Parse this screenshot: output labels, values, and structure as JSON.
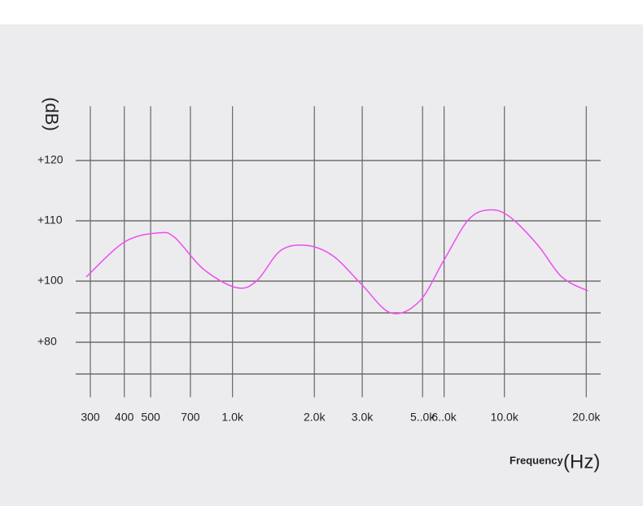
{
  "chart_data": {
    "type": "line",
    "y_label": "(dB)",
    "x_label": "Frequency",
    "x_unit": "(Hz)",
    "log_x": true,
    "grid": true,
    "xlim": [
      265,
      22600
    ],
    "ylim": [
      62,
      129
    ],
    "xticks": [
      {
        "value": 300,
        "label": "300"
      },
      {
        "value": 400,
        "label": "400"
      },
      {
        "value": 500,
        "label": "500"
      },
      {
        "value": 700,
        "label": "700"
      },
      {
        "value": 1000,
        "label": "1.0k"
      },
      {
        "value": 2000,
        "label": "2.0k"
      },
      {
        "value": 3000,
        "label": "3.0k"
      },
      {
        "value": 5000,
        "label": "5..0k"
      },
      {
        "value": 6000,
        "label": "6..0k"
      },
      {
        "value": 10000,
        "label": "10.0k"
      },
      {
        "value": 20000,
        "label": "20.0k"
      }
    ],
    "yticks": [
      {
        "value": 80,
        "label": "+80"
      },
      {
        "value": 100,
        "label": "+100"
      },
      {
        "value": 110,
        "label": "+110"
      },
      {
        "value": 120,
        "label": "+120"
      }
    ],
    "x": [
      290,
      401,
      535,
      614,
      781,
      1030,
      1225,
      1506,
      1890,
      2355,
      3000,
      3820,
      4860,
      5980,
      7350,
      8730,
      10370,
      13200,
      16250,
      20280
    ],
    "series": [
      {
        "color": "#f04cf0",
        "values": [
          100.7,
          106.5,
          108.0,
          107.2,
          102.0,
          97.9,
          100,
          105.1,
          105.9,
          104.1,
          98.7,
          89.6,
          93.3,
          103.4,
          110.1,
          111.8,
          110.8,
          106.1,
          100.7,
          96.8
        ]
      }
    ]
  }
}
